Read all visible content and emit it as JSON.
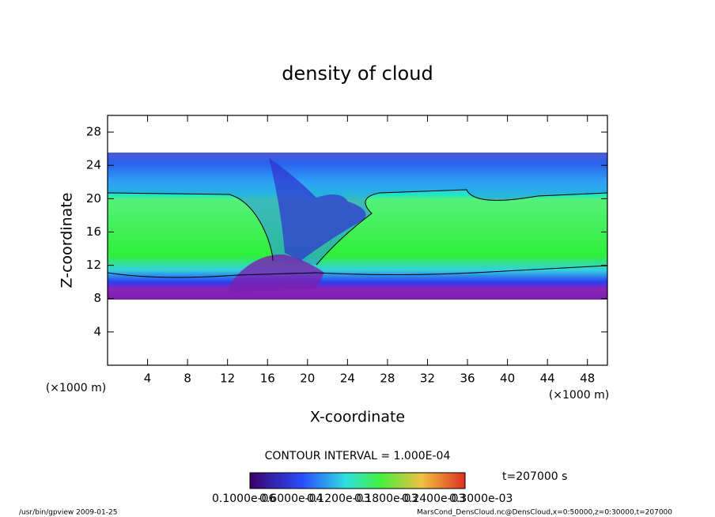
{
  "chart_data": {
    "type": "heatmap",
    "title": "density of cloud",
    "x_label": "X-coordinate",
    "y_label": "Z-coordinate",
    "x_unit": "(×1000 m)",
    "y_unit": "(×1000 m)",
    "xlim": [
      0,
      50
    ],
    "ylim": [
      0,
      30
    ],
    "xticks": [
      4,
      8,
      12,
      16,
      20,
      24,
      28,
      32,
      36,
      40,
      44,
      48
    ],
    "yticks": [
      4,
      8,
      12,
      16,
      20,
      24,
      28
    ],
    "contour_interval": "CONTOUR INTERVAL = 1.000E-04",
    "time_label": "t=207000 s",
    "colorbar_labels": [
      "0.1000e-06",
      "0.6000e-04",
      "0.1200e-03",
      "0.1800e-03",
      "0.2400e-03",
      "0.3000e-03"
    ],
    "footer_left": "/usr/bin/gpview   2009-01-25",
    "footer_right": "MarsCond_DensCloud.nc@DensCloud,x=0:50000,z=0:30000,t=207000"
  }
}
